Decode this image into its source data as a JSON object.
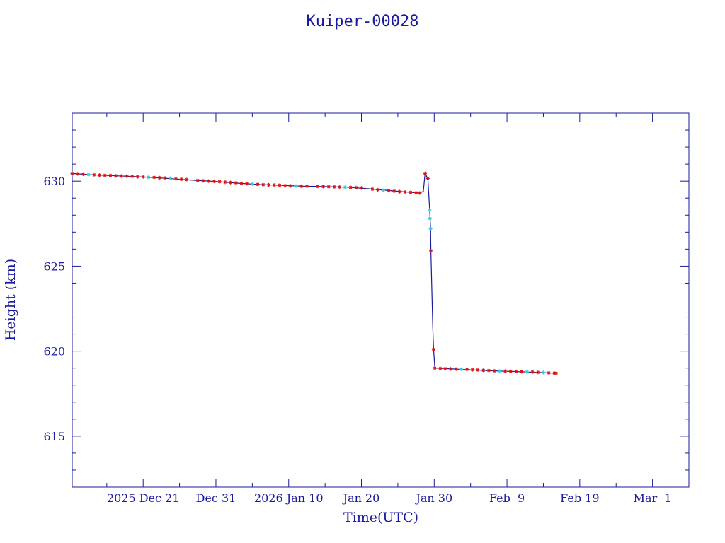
{
  "chart_data": {
    "type": "line",
    "title": "Kuiper-00028",
    "xlabel": "Time(UTC)",
    "ylabel": "Height (km)",
    "x_unit": "date",
    "xlim": [
      "2025-12-11T06:00",
      "2026-03-06T00:00"
    ],
    "ylim": [
      612,
      634
    ],
    "x_ticks": [
      {
        "date": "2025-12-21",
        "label": "2025 Dec 21"
      },
      {
        "date": "2025-12-31",
        "label": "Dec 31"
      },
      {
        "date": "2026-01-10",
        "label": "2026 Jan 10"
      },
      {
        "date": "2026-01-20",
        "label": "Jan 20"
      },
      {
        "date": "2026-01-30",
        "label": "Jan 30"
      },
      {
        "date": "2026-02-09",
        "label": "Feb  9"
      },
      {
        "date": "2026-02-19",
        "label": "Feb 19"
      },
      {
        "date": "2026-03-01",
        "label": "Mar  1"
      }
    ],
    "y_ticks": [
      615,
      620,
      625,
      630
    ],
    "colors": {
      "line": "#1a1a9e",
      "marker_red": "#dd1111",
      "marker_cyan": "#33ccdd",
      "axis": "#1a1a9e"
    },
    "series": [
      {
        "points": [
          [
            "2025-12-11T06:00",
            630.45
          ],
          [
            "2025-12-13T12:00",
            630.38
          ],
          [
            "2025-12-16T00:00",
            630.33
          ],
          [
            "2025-12-19T00:00",
            630.28
          ],
          [
            "2025-12-22T00:00",
            630.22
          ],
          [
            "2025-12-25T00:00",
            630.14
          ],
          [
            "2025-12-28T00:00",
            630.05
          ],
          [
            "2025-12-31T00:00",
            629.98
          ],
          [
            "2026-01-03T00:00",
            629.88
          ],
          [
            "2026-01-06T00:00",
            629.8
          ],
          [
            "2026-01-09T00:00",
            629.75
          ],
          [
            "2026-01-12T00:00",
            629.7
          ],
          [
            "2026-01-15T00:00",
            629.68
          ],
          [
            "2026-01-18T00:00",
            629.64
          ],
          [
            "2026-01-21T00:00",
            629.55
          ],
          [
            "2026-01-24T00:00",
            629.44
          ],
          [
            "2026-01-27T00:00",
            629.33
          ],
          [
            "2026-01-28T00:00",
            629.3
          ],
          [
            "2026-01-28T12:00",
            629.4
          ],
          [
            "2026-01-28T18:00",
            630.45
          ],
          [
            "2026-01-29T03:00",
            630.15
          ],
          [
            "2026-01-29T09:00",
            628.3
          ],
          [
            "2026-01-29T12:00",
            627.2
          ],
          [
            "2026-01-29T13:00",
            625.9
          ],
          [
            "2026-01-29T19:00",
            621.5
          ],
          [
            "2026-01-29T22:00",
            620.1
          ],
          [
            "2026-01-30T02:00",
            619.0
          ],
          [
            "2026-02-01T00:00",
            618.96
          ],
          [
            "2026-02-04T00:00",
            618.9
          ],
          [
            "2026-02-07T00:00",
            618.84
          ],
          [
            "2026-02-10T00:00",
            618.8
          ],
          [
            "2026-02-13T00:00",
            618.75
          ],
          [
            "2026-02-15T18:00",
            618.7
          ]
        ],
        "markers": [
          {
            "x": "2025-12-11T06:00",
            "y": 630.45,
            "color": "red"
          },
          {
            "x": "2025-12-12T00:00",
            "y": 630.43,
            "color": "red"
          },
          {
            "x": "2025-12-12T18:00",
            "y": 630.41,
            "color": "red"
          },
          {
            "x": "2025-12-13T12:00",
            "y": 630.38,
            "color": "cyan"
          },
          {
            "x": "2025-12-14T06:00",
            "y": 630.37,
            "color": "red"
          },
          {
            "x": "2025-12-15T00:00",
            "y": 630.35,
            "color": "red"
          },
          {
            "x": "2025-12-15T18:00",
            "y": 630.34,
            "color": "red"
          },
          {
            "x": "2025-12-16T12:00",
            "y": 630.33,
            "color": "red"
          },
          {
            "x": "2025-12-17T06:00",
            "y": 630.31,
            "color": "red"
          },
          {
            "x": "2025-12-18T00:00",
            "y": 630.3,
            "color": "red"
          },
          {
            "x": "2025-12-18T18:00",
            "y": 630.29,
            "color": "red"
          },
          {
            "x": "2025-12-19T12:00",
            "y": 630.28,
            "color": "red"
          },
          {
            "x": "2025-12-20T06:00",
            "y": 630.26,
            "color": "red"
          },
          {
            "x": "2025-12-21T00:00",
            "y": 630.25,
            "color": "red"
          },
          {
            "x": "2025-12-21T18:00",
            "y": 630.23,
            "color": "cyan"
          },
          {
            "x": "2025-12-22T12:00",
            "y": 630.22,
            "color": "red"
          },
          {
            "x": "2025-12-23T06:00",
            "y": 630.2,
            "color": "red"
          },
          {
            "x": "2025-12-24T00:00",
            "y": 630.18,
            "color": "red"
          },
          {
            "x": "2025-12-24T18:00",
            "y": 630.17,
            "color": "cyan"
          },
          {
            "x": "2025-12-25T12:00",
            "y": 630.13,
            "color": "red"
          },
          {
            "x": "2025-12-26T06:00",
            "y": 630.11,
            "color": "red"
          },
          {
            "x": "2025-12-27T00:00",
            "y": 630.09,
            "color": "red"
          },
          {
            "x": "2025-12-28T12:00",
            "y": 630.04,
            "color": "red"
          },
          {
            "x": "2025-12-29T06:00",
            "y": 630.02,
            "color": "red"
          },
          {
            "x": "2025-12-30T00:00",
            "y": 630.0,
            "color": "red"
          },
          {
            "x": "2025-12-30T18:00",
            "y": 629.99,
            "color": "red"
          },
          {
            "x": "2025-12-31T12:00",
            "y": 629.97,
            "color": "red"
          },
          {
            "x": "2026-01-01T06:00",
            "y": 629.94,
            "color": "red"
          },
          {
            "x": "2026-01-02T00:00",
            "y": 629.92,
            "color": "red"
          },
          {
            "x": "2026-01-02T18:00",
            "y": 629.9,
            "color": "red"
          },
          {
            "x": "2026-01-03T12:00",
            "y": 629.87,
            "color": "red"
          },
          {
            "x": "2026-01-04T06:00",
            "y": 629.85,
            "color": "red"
          },
          {
            "x": "2026-01-05T00:00",
            "y": 629.83,
            "color": "cyan"
          },
          {
            "x": "2026-01-05T18:00",
            "y": 629.81,
            "color": "red"
          },
          {
            "x": "2026-01-06T12:00",
            "y": 629.79,
            "color": "red"
          },
          {
            "x": "2026-01-07T06:00",
            "y": 629.78,
            "color": "red"
          },
          {
            "x": "2026-01-08T00:00",
            "y": 629.77,
            "color": "red"
          },
          {
            "x": "2026-01-08T18:00",
            "y": 629.76,
            "color": "red"
          },
          {
            "x": "2026-01-09T12:00",
            "y": 629.74,
            "color": "red"
          },
          {
            "x": "2026-01-10T06:00",
            "y": 629.72,
            "color": "red"
          },
          {
            "x": "2026-01-11T00:00",
            "y": 629.71,
            "color": "cyan"
          },
          {
            "x": "2026-01-11T18:00",
            "y": 629.7,
            "color": "red"
          },
          {
            "x": "2026-01-12T12:00",
            "y": 629.7,
            "color": "red"
          },
          {
            "x": "2026-01-14T00:00",
            "y": 629.69,
            "color": "red"
          },
          {
            "x": "2026-01-14T18:00",
            "y": 629.68,
            "color": "red"
          },
          {
            "x": "2026-01-15T12:00",
            "y": 629.67,
            "color": "red"
          },
          {
            "x": "2026-01-16T06:00",
            "y": 629.66,
            "color": "red"
          },
          {
            "x": "2026-01-17T00:00",
            "y": 629.65,
            "color": "red"
          },
          {
            "x": "2026-01-17T18:00",
            "y": 629.64,
            "color": "cyan"
          },
          {
            "x": "2026-01-18T12:00",
            "y": 629.63,
            "color": "red"
          },
          {
            "x": "2026-01-19T06:00",
            "y": 629.62,
            "color": "red"
          },
          {
            "x": "2026-01-20T00:00",
            "y": 629.6,
            "color": "red"
          },
          {
            "x": "2026-01-21T12:00",
            "y": 629.53,
            "color": "red"
          },
          {
            "x": "2026-01-22T06:00",
            "y": 629.49,
            "color": "red"
          },
          {
            "x": "2026-01-23T00:00",
            "y": 629.46,
            "color": "cyan"
          },
          {
            "x": "2026-01-23T18:00",
            "y": 629.44,
            "color": "red"
          },
          {
            "x": "2026-01-24T12:00",
            "y": 629.41,
            "color": "red"
          },
          {
            "x": "2026-01-25T06:00",
            "y": 629.38,
            "color": "red"
          },
          {
            "x": "2026-01-26T00:00",
            "y": 629.36,
            "color": "red"
          },
          {
            "x": "2026-01-26T18:00",
            "y": 629.34,
            "color": "red"
          },
          {
            "x": "2026-01-27T12:00",
            "y": 629.32,
            "color": "red"
          },
          {
            "x": "2026-01-28T00:00",
            "y": 629.3,
            "color": "red"
          },
          {
            "x": "2026-01-28T18:00",
            "y": 630.45,
            "color": "red"
          },
          {
            "x": "2026-01-29T03:00",
            "y": 630.15,
            "color": "red"
          },
          {
            "x": "2026-01-29T09:00",
            "y": 628.3,
            "color": "cyan"
          },
          {
            "x": "2026-01-29T10:00",
            "y": 627.8,
            "color": "cyan"
          },
          {
            "x": "2026-01-29T12:00",
            "y": 627.2,
            "color": "cyan"
          },
          {
            "x": "2026-01-29T13:00",
            "y": 625.9,
            "color": "red"
          },
          {
            "x": "2026-01-29T22:00",
            "y": 620.1,
            "color": "red"
          },
          {
            "x": "2026-01-30T02:00",
            "y": 619.0,
            "color": "red"
          },
          {
            "x": "2026-01-30T20:00",
            "y": 618.98,
            "color": "red"
          },
          {
            "x": "2026-01-31T12:00",
            "y": 618.97,
            "color": "red"
          },
          {
            "x": "2026-02-01T06:00",
            "y": 618.95,
            "color": "red"
          },
          {
            "x": "2026-02-02T00:00",
            "y": 618.94,
            "color": "red"
          },
          {
            "x": "2026-02-02T18:00",
            "y": 618.93,
            "color": "cyan"
          },
          {
            "x": "2026-02-03T12:00",
            "y": 618.92,
            "color": "red"
          },
          {
            "x": "2026-02-04T06:00",
            "y": 618.9,
            "color": "red"
          },
          {
            "x": "2026-02-05T00:00",
            "y": 618.89,
            "color": "red"
          },
          {
            "x": "2026-02-05T18:00",
            "y": 618.87,
            "color": "red"
          },
          {
            "x": "2026-02-06T12:00",
            "y": 618.86,
            "color": "red"
          },
          {
            "x": "2026-02-07T06:00",
            "y": 618.84,
            "color": "red"
          },
          {
            "x": "2026-02-08T00:00",
            "y": 618.83,
            "color": "cyan"
          },
          {
            "x": "2026-02-08T18:00",
            "y": 618.82,
            "color": "red"
          },
          {
            "x": "2026-02-09T12:00",
            "y": 618.81,
            "color": "red"
          },
          {
            "x": "2026-02-10T06:00",
            "y": 618.8,
            "color": "red"
          },
          {
            "x": "2026-02-11T00:00",
            "y": 618.79,
            "color": "red"
          },
          {
            "x": "2026-02-11T18:00",
            "y": 618.78,
            "color": "cyan"
          },
          {
            "x": "2026-02-12T12:00",
            "y": 618.77,
            "color": "red"
          },
          {
            "x": "2026-02-13T06:00",
            "y": 618.75,
            "color": "red"
          },
          {
            "x": "2026-02-14T00:00",
            "y": 618.74,
            "color": "cyan"
          },
          {
            "x": "2026-02-14T18:00",
            "y": 618.72,
            "color": "red"
          },
          {
            "x": "2026-02-15T12:00",
            "y": 618.71,
            "color": "red"
          },
          {
            "x": "2026-02-15T18:00",
            "y": 618.7,
            "color": "red"
          }
        ]
      }
    ],
    "grid": false,
    "legend": "none"
  }
}
